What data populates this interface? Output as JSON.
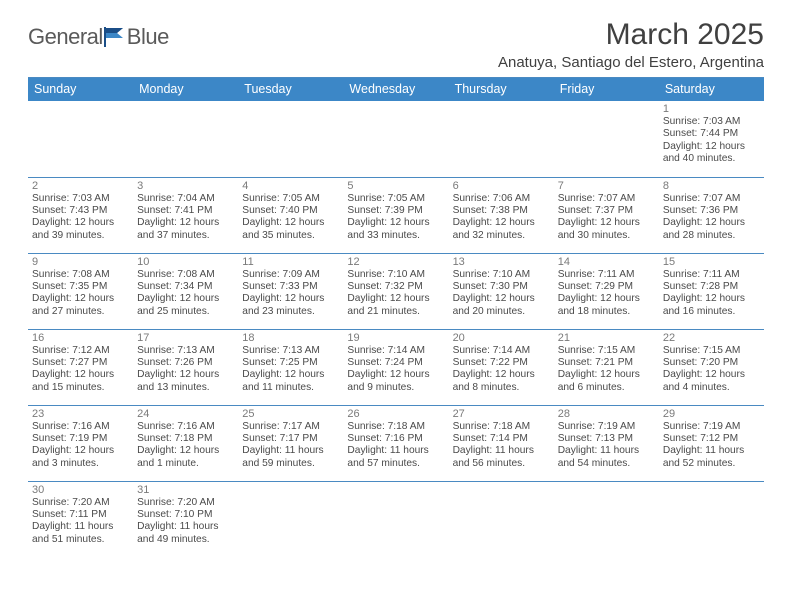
{
  "brand": {
    "part1": "General",
    "part2": "Blue"
  },
  "title": "March 2025",
  "location": "Anatuya, Santiago del Estero, Argentina",
  "colors": {
    "header_bg": "#3c87c7",
    "header_text": "#ffffff",
    "rule": "#4a8ac2",
    "body_text": "#4a4a4a",
    "daynum": "#7a7a7a",
    "title": "#404040",
    "logo_gray": "#5a5a5a",
    "logo_blue_dark": "#1b4e87",
    "logo_blue_light": "#3c87c7"
  },
  "typography": {
    "title_fontsize": 30,
    "location_fontsize": 15,
    "dayheader_fontsize": 12.5,
    "daynum_fontsize": 11,
    "entry_fontsize": 10.2
  },
  "day_headers": [
    "Sunday",
    "Monday",
    "Tuesday",
    "Wednesday",
    "Thursday",
    "Friday",
    "Saturday"
  ],
  "weeks": [
    [
      null,
      null,
      null,
      null,
      null,
      null,
      {
        "n": "1",
        "sr": "Sunrise: 7:03 AM",
        "ss": "Sunset: 7:44 PM",
        "d1": "Daylight: 12 hours",
        "d2": "and 40 minutes."
      }
    ],
    [
      {
        "n": "2",
        "sr": "Sunrise: 7:03 AM",
        "ss": "Sunset: 7:43 PM",
        "d1": "Daylight: 12 hours",
        "d2": "and 39 minutes."
      },
      {
        "n": "3",
        "sr": "Sunrise: 7:04 AM",
        "ss": "Sunset: 7:41 PM",
        "d1": "Daylight: 12 hours",
        "d2": "and 37 minutes."
      },
      {
        "n": "4",
        "sr": "Sunrise: 7:05 AM",
        "ss": "Sunset: 7:40 PM",
        "d1": "Daylight: 12 hours",
        "d2": "and 35 minutes."
      },
      {
        "n": "5",
        "sr": "Sunrise: 7:05 AM",
        "ss": "Sunset: 7:39 PM",
        "d1": "Daylight: 12 hours",
        "d2": "and 33 minutes."
      },
      {
        "n": "6",
        "sr": "Sunrise: 7:06 AM",
        "ss": "Sunset: 7:38 PM",
        "d1": "Daylight: 12 hours",
        "d2": "and 32 minutes."
      },
      {
        "n": "7",
        "sr": "Sunrise: 7:07 AM",
        "ss": "Sunset: 7:37 PM",
        "d1": "Daylight: 12 hours",
        "d2": "and 30 minutes."
      },
      {
        "n": "8",
        "sr": "Sunrise: 7:07 AM",
        "ss": "Sunset: 7:36 PM",
        "d1": "Daylight: 12 hours",
        "d2": "and 28 minutes."
      }
    ],
    [
      {
        "n": "9",
        "sr": "Sunrise: 7:08 AM",
        "ss": "Sunset: 7:35 PM",
        "d1": "Daylight: 12 hours",
        "d2": "and 27 minutes."
      },
      {
        "n": "10",
        "sr": "Sunrise: 7:08 AM",
        "ss": "Sunset: 7:34 PM",
        "d1": "Daylight: 12 hours",
        "d2": "and 25 minutes."
      },
      {
        "n": "11",
        "sr": "Sunrise: 7:09 AM",
        "ss": "Sunset: 7:33 PM",
        "d1": "Daylight: 12 hours",
        "d2": "and 23 minutes."
      },
      {
        "n": "12",
        "sr": "Sunrise: 7:10 AM",
        "ss": "Sunset: 7:32 PM",
        "d1": "Daylight: 12 hours",
        "d2": "and 21 minutes."
      },
      {
        "n": "13",
        "sr": "Sunrise: 7:10 AM",
        "ss": "Sunset: 7:30 PM",
        "d1": "Daylight: 12 hours",
        "d2": "and 20 minutes."
      },
      {
        "n": "14",
        "sr": "Sunrise: 7:11 AM",
        "ss": "Sunset: 7:29 PM",
        "d1": "Daylight: 12 hours",
        "d2": "and 18 minutes."
      },
      {
        "n": "15",
        "sr": "Sunrise: 7:11 AM",
        "ss": "Sunset: 7:28 PM",
        "d1": "Daylight: 12 hours",
        "d2": "and 16 minutes."
      }
    ],
    [
      {
        "n": "16",
        "sr": "Sunrise: 7:12 AM",
        "ss": "Sunset: 7:27 PM",
        "d1": "Daylight: 12 hours",
        "d2": "and 15 minutes."
      },
      {
        "n": "17",
        "sr": "Sunrise: 7:13 AM",
        "ss": "Sunset: 7:26 PM",
        "d1": "Daylight: 12 hours",
        "d2": "and 13 minutes."
      },
      {
        "n": "18",
        "sr": "Sunrise: 7:13 AM",
        "ss": "Sunset: 7:25 PM",
        "d1": "Daylight: 12 hours",
        "d2": "and 11 minutes."
      },
      {
        "n": "19",
        "sr": "Sunrise: 7:14 AM",
        "ss": "Sunset: 7:24 PM",
        "d1": "Daylight: 12 hours",
        "d2": "and 9 minutes."
      },
      {
        "n": "20",
        "sr": "Sunrise: 7:14 AM",
        "ss": "Sunset: 7:22 PM",
        "d1": "Daylight: 12 hours",
        "d2": "and 8 minutes."
      },
      {
        "n": "21",
        "sr": "Sunrise: 7:15 AM",
        "ss": "Sunset: 7:21 PM",
        "d1": "Daylight: 12 hours",
        "d2": "and 6 minutes."
      },
      {
        "n": "22",
        "sr": "Sunrise: 7:15 AM",
        "ss": "Sunset: 7:20 PM",
        "d1": "Daylight: 12 hours",
        "d2": "and 4 minutes."
      }
    ],
    [
      {
        "n": "23",
        "sr": "Sunrise: 7:16 AM",
        "ss": "Sunset: 7:19 PM",
        "d1": "Daylight: 12 hours",
        "d2": "and 3 minutes."
      },
      {
        "n": "24",
        "sr": "Sunrise: 7:16 AM",
        "ss": "Sunset: 7:18 PM",
        "d1": "Daylight: 12 hours",
        "d2": "and 1 minute."
      },
      {
        "n": "25",
        "sr": "Sunrise: 7:17 AM",
        "ss": "Sunset: 7:17 PM",
        "d1": "Daylight: 11 hours",
        "d2": "and 59 minutes."
      },
      {
        "n": "26",
        "sr": "Sunrise: 7:18 AM",
        "ss": "Sunset: 7:16 PM",
        "d1": "Daylight: 11 hours",
        "d2": "and 57 minutes."
      },
      {
        "n": "27",
        "sr": "Sunrise: 7:18 AM",
        "ss": "Sunset: 7:14 PM",
        "d1": "Daylight: 11 hours",
        "d2": "and 56 minutes."
      },
      {
        "n": "28",
        "sr": "Sunrise: 7:19 AM",
        "ss": "Sunset: 7:13 PM",
        "d1": "Daylight: 11 hours",
        "d2": "and 54 minutes."
      },
      {
        "n": "29",
        "sr": "Sunrise: 7:19 AM",
        "ss": "Sunset: 7:12 PM",
        "d1": "Daylight: 11 hours",
        "d2": "and 52 minutes."
      }
    ],
    [
      {
        "n": "30",
        "sr": "Sunrise: 7:20 AM",
        "ss": "Sunset: 7:11 PM",
        "d1": "Daylight: 11 hours",
        "d2": "and 51 minutes."
      },
      {
        "n": "31",
        "sr": "Sunrise: 7:20 AM",
        "ss": "Sunset: 7:10 PM",
        "d1": "Daylight: 11 hours",
        "d2": "and 49 minutes."
      },
      null,
      null,
      null,
      null,
      null
    ]
  ]
}
